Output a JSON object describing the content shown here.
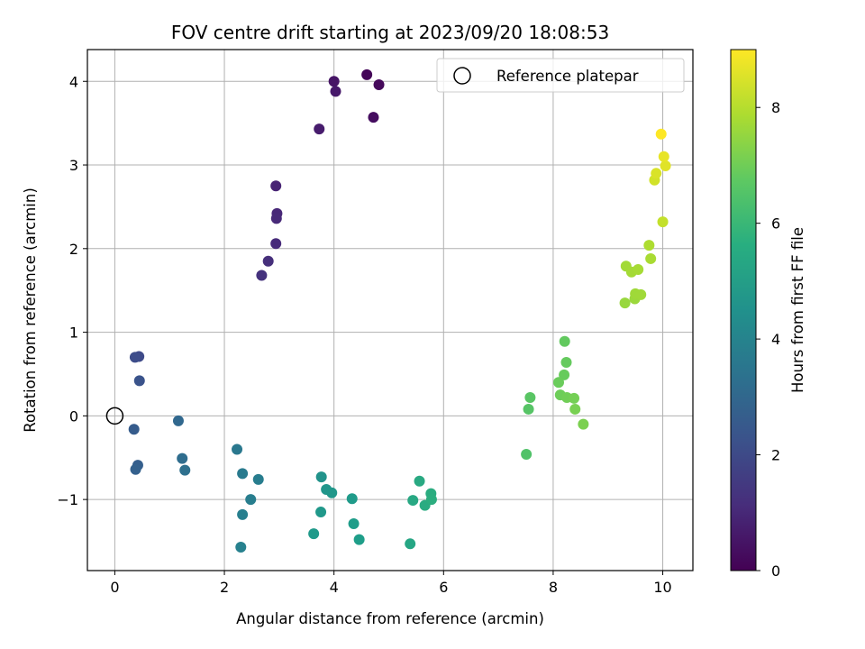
{
  "chart_data": {
    "type": "scatter",
    "title": "FOV centre drift starting at 2023/09/20 18:08:53",
    "xlabel": "Angular distance from reference (arcmin)",
    "ylabel": "Rotation from reference (arcmin)",
    "xlim": [
      -0.5,
      10.55
    ],
    "ylim": [
      -1.85,
      4.38
    ],
    "x_ticks": [
      0,
      2,
      4,
      6,
      8,
      10
    ],
    "y_ticks": [
      -1,
      0,
      1,
      2,
      3,
      4
    ],
    "x_tick_labels": [
      "0",
      "2",
      "4",
      "6",
      "8",
      "10"
    ],
    "y_tick_labels": [
      "−1",
      "0",
      "1",
      "2",
      "3",
      "4"
    ],
    "grid": true,
    "colormap": "viridis",
    "legend": {
      "placement": "top-right",
      "entries": [
        {
          "label": "Reference platepar",
          "marker": "open-circle",
          "color": "#000000"
        }
      ]
    },
    "reference_point": {
      "x": 0,
      "y": 0
    },
    "colorbar": {
      "label": "Hours from first FF file",
      "range": [
        0,
        9
      ],
      "ticks": [
        0,
        2,
        4,
        6,
        8
      ],
      "tick_labels": [
        "0",
        "2",
        "4",
        "6",
        "8"
      ]
    },
    "points": [
      {
        "x": 4.6,
        "y": 4.08,
        "c": 0.1
      },
      {
        "x": 4.82,
        "y": 3.96,
        "c": 0.2
      },
      {
        "x": 4.72,
        "y": 3.57,
        "c": 0.3
      },
      {
        "x": 4.0,
        "y": 4.0,
        "c": 0.5
      },
      {
        "x": 4.03,
        "y": 3.88,
        "c": 0.6
      },
      {
        "x": 3.73,
        "y": 3.43,
        "c": 0.7
      },
      {
        "x": 2.94,
        "y": 2.75,
        "c": 0.9
      },
      {
        "x": 2.96,
        "y": 2.42,
        "c": 1.0
      },
      {
        "x": 2.95,
        "y": 2.36,
        "c": 1.05
      },
      {
        "x": 2.94,
        "y": 2.06,
        "c": 1.1
      },
      {
        "x": 2.8,
        "y": 1.85,
        "c": 1.2
      },
      {
        "x": 2.68,
        "y": 1.68,
        "c": 1.3
      },
      {
        "x": 0.44,
        "y": 0.71,
        "c": 2.0
      },
      {
        "x": 0.37,
        "y": 0.7,
        "c": 2.1
      },
      {
        "x": 0.45,
        "y": 0.42,
        "c": 2.3
      },
      {
        "x": 0.35,
        "y": -0.16,
        "c": 2.6
      },
      {
        "x": 0.42,
        "y": -0.59,
        "c": 2.7
      },
      {
        "x": 0.38,
        "y": -0.64,
        "c": 2.75
      },
      {
        "x": 1.16,
        "y": -0.06,
        "c": 3.0
      },
      {
        "x": 1.23,
        "y": -0.51,
        "c": 3.2
      },
      {
        "x": 1.28,
        "y": -0.65,
        "c": 3.3
      },
      {
        "x": 2.23,
        "y": -0.4,
        "c": 3.6
      },
      {
        "x": 2.33,
        "y": -0.69,
        "c": 3.7
      },
      {
        "x": 2.62,
        "y": -0.76,
        "c": 3.8
      },
      {
        "x": 2.48,
        "y": -1.0,
        "c": 3.85
      },
      {
        "x": 2.33,
        "y": -1.18,
        "c": 3.9
      },
      {
        "x": 2.3,
        "y": -1.57,
        "c": 3.95
      },
      {
        "x": 3.77,
        "y": -0.73,
        "c": 4.6
      },
      {
        "x": 3.86,
        "y": -0.88,
        "c": 4.7
      },
      {
        "x": 3.96,
        "y": -0.92,
        "c": 4.75
      },
      {
        "x": 3.76,
        "y": -1.15,
        "c": 4.8
      },
      {
        "x": 3.63,
        "y": -1.41,
        "c": 4.85
      },
      {
        "x": 4.33,
        "y": -0.99,
        "c": 4.9
      },
      {
        "x": 4.36,
        "y": -1.29,
        "c": 4.95
      },
      {
        "x": 4.46,
        "y": -1.48,
        "c": 5.0
      },
      {
        "x": 5.39,
        "y": -1.53,
        "c": 5.3
      },
      {
        "x": 5.44,
        "y": -1.01,
        "c": 5.4
      },
      {
        "x": 5.56,
        "y": -0.78,
        "c": 5.45
      },
      {
        "x": 5.66,
        "y": -1.07,
        "c": 5.5
      },
      {
        "x": 5.77,
        "y": -0.93,
        "c": 5.55
      },
      {
        "x": 5.78,
        "y": -1.0,
        "c": 5.6
      },
      {
        "x": 7.51,
        "y": -0.46,
        "c": 6.5
      },
      {
        "x": 7.55,
        "y": 0.08,
        "c": 6.6
      },
      {
        "x": 7.58,
        "y": 0.22,
        "c": 6.65
      },
      {
        "x": 8.21,
        "y": 0.89,
        "c": 6.8
      },
      {
        "x": 8.24,
        "y": 0.64,
        "c": 6.85
      },
      {
        "x": 8.2,
        "y": 0.49,
        "c": 6.9
      },
      {
        "x": 8.1,
        "y": 0.4,
        "c": 6.95
      },
      {
        "x": 8.13,
        "y": 0.25,
        "c": 7.0
      },
      {
        "x": 8.25,
        "y": 0.22,
        "c": 7.05
      },
      {
        "x": 8.38,
        "y": 0.21,
        "c": 7.1
      },
      {
        "x": 8.4,
        "y": 0.08,
        "c": 7.15
      },
      {
        "x": 8.55,
        "y": -0.1,
        "c": 7.2
      },
      {
        "x": 9.31,
        "y": 1.35,
        "c": 7.6
      },
      {
        "x": 9.49,
        "y": 1.4,
        "c": 7.65
      },
      {
        "x": 9.5,
        "y": 1.46,
        "c": 7.7
      },
      {
        "x": 9.6,
        "y": 1.45,
        "c": 7.72
      },
      {
        "x": 9.33,
        "y": 1.79,
        "c": 7.75
      },
      {
        "x": 9.43,
        "y": 1.72,
        "c": 7.78
      },
      {
        "x": 9.55,
        "y": 1.75,
        "c": 7.8
      },
      {
        "x": 9.78,
        "y": 1.88,
        "c": 7.85
      },
      {
        "x": 9.75,
        "y": 2.04,
        "c": 7.9
      },
      {
        "x": 10.0,
        "y": 2.32,
        "c": 8.2
      },
      {
        "x": 9.85,
        "y": 2.82,
        "c": 8.4
      },
      {
        "x": 9.88,
        "y": 2.9,
        "c": 8.5
      },
      {
        "x": 10.05,
        "y": 2.99,
        "c": 8.6
      },
      {
        "x": 10.02,
        "y": 3.1,
        "c": 8.7
      },
      {
        "x": 9.97,
        "y": 3.37,
        "c": 9.0
      }
    ]
  }
}
